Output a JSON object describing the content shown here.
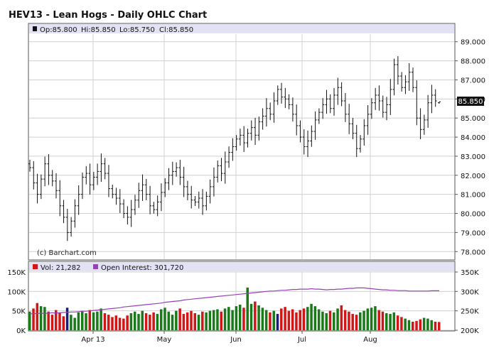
{
  "title": "HEV13 - Lean Hogs - Daily OHLC Chart",
  "info": {
    "op": "Op:85.800",
    "hi": "Hi:85.850",
    "lo": "Lo:85.750",
    "cl": "Cl:85.850"
  },
  "watermark": "(c) Barchart.com",
  "last_price_label": "85.850",
  "volume_legend": {
    "vol": "Vol: 21,282",
    "oi": "Open Interest: 301,720"
  },
  "colors": {
    "up": "#1a7a1a",
    "down": "#d01616",
    "neutral": "#1a1a80",
    "oi": "#9a3fb8",
    "info_bar": "#e2e2f4",
    "grid": "#d0d0d0"
  },
  "chart_data": [
    {
      "type": "ohlc",
      "title": "HEV13 - Lean Hogs - Daily OHLC Chart",
      "x_ticks": [
        "Apr 13",
        "May",
        "Jun",
        "Jul",
        "Aug"
      ],
      "y_ticks": [
        "78.000",
        "79.000",
        "80.000",
        "81.000",
        "82.000",
        "83.000",
        "84.000",
        "85.000",
        "86.000",
        "87.000",
        "88.000",
        "89.000"
      ],
      "ylim": [
        77.6,
        89.4
      ],
      "last": {
        "open": 85.8,
        "high": 85.85,
        "low": 85.75,
        "close": 85.85
      },
      "close": [
        82.4,
        81.6,
        81.0,
        81.8,
        82.6,
        82.0,
        81.7,
        81.2,
        80.4,
        79.8,
        79.0,
        79.6,
        80.4,
        81.0,
        81.9,
        82.1,
        81.5,
        81.9,
        82.2,
        82.6,
        82.1,
        81.3,
        81.0,
        80.8,
        80.5,
        80.0,
        79.8,
        80.2,
        80.7,
        81.2,
        81.5,
        81.0,
        80.4,
        80.2,
        80.6,
        81.1,
        81.6,
        82.0,
        82.2,
        82.4,
        81.9,
        81.4,
        81.0,
        80.7,
        80.6,
        80.8,
        80.4,
        80.9,
        81.4,
        81.9,
        82.5,
        82.1,
        82.7,
        83.2,
        83.5,
        83.9,
        84.1,
        83.7,
        84.2,
        84.5,
        84.1,
        84.8,
        85.1,
        85.5,
        85.2,
        85.9,
        86.5,
        86.1,
        86.0,
        85.7,
        85.2,
        84.6,
        84.0,
        83.5,
        83.8,
        84.3,
        84.9,
        85.3,
        85.7,
        86.0,
        85.5,
        86.2,
        86.6,
        85.9,
        85.2,
        84.7,
        84.2,
        83.4,
        83.9,
        84.6,
        85.2,
        85.8,
        86.2,
        85.9,
        85.3,
        85.7,
        86.5,
        87.8,
        87.2,
        86.6,
        86.9,
        87.4,
        86.6,
        85.0,
        84.4,
        84.9,
        85.8,
        86.2,
        85.9,
        85.85
      ],
      "series": [
        {
          "name": "Vol: 21,282",
          "type": "bar",
          "last": 21282,
          "values": [
            48000,
            56000,
            70000,
            62000,
            60000,
            48000,
            40000,
            52000,
            46000,
            36000,
            58000,
            40000,
            32000,
            46000,
            50000,
            44000,
            52000,
            46000,
            48000,
            56000,
            44000,
            40000,
            34000,
            38000,
            32000,
            30000,
            38000,
            44000,
            48000,
            42000,
            50000,
            44000,
            40000,
            46000,
            42000,
            54000,
            58000,
            48000,
            40000,
            50000,
            56000,
            42000,
            46000,
            50000,
            44000,
            40000,
            48000,
            46000,
            50000,
            52000,
            54000,
            48000,
            56000,
            60000,
            52000,
            62000,
            66000,
            58000,
            110000,
            68000,
            74000,
            64000,
            58000,
            52000,
            46000,
            50000,
            42000,
            56000,
            60000,
            50000,
            54000,
            46000,
            52000,
            56000,
            60000,
            68000,
            62000,
            54000,
            48000,
            44000,
            50000,
            46000,
            56000,
            64000,
            52000,
            48000,
            42000,
            40000,
            46000,
            50000,
            56000,
            58000,
            62000,
            52000,
            48000,
            44000,
            42000,
            46000,
            38000,
            34000,
            30000,
            26000,
            22000,
            24000,
            28000,
            32000,
            30000,
            26000,
            22000,
            21282
          ]
        },
        {
          "name": "Open Interest: 301,720",
          "type": "line",
          "last": 301720,
          "values": [
            242000,
            243000,
            243000,
            244000,
            243000,
            244000,
            245000,
            244000,
            245000,
            246000,
            246000,
            247000,
            247000,
            248000,
            249000,
            249000,
            250000,
            251000,
            252000,
            253000,
            254000,
            255000,
            256000,
            257000,
            258000,
            260000,
            261000,
            262000,
            263000,
            264000,
            265000,
            266000,
            267000,
            268000,
            269000,
            270000,
            272000,
            273000,
            274000,
            275000,
            276000,
            278000,
            279000,
            280000,
            281000,
            282000,
            283000,
            284000,
            285000,
            286000,
            287000,
            288000,
            289000,
            290000,
            291000,
            292000,
            293000,
            294000,
            295000,
            296000,
            297000,
            298000,
            299000,
            300000,
            301000,
            301000,
            302000,
            303000,
            303000,
            304000,
            305000,
            305000,
            306000,
            306000,
            306000,
            307000,
            306000,
            306000,
            305000,
            304000,
            305000,
            305000,
            306000,
            306000,
            307000,
            308000,
            308000,
            309000,
            309000,
            309000,
            308000,
            307000,
            306000,
            305000,
            304000,
            304000,
            303000,
            303000,
            302000,
            302000,
            302000,
            301000,
            301000,
            301000,
            301000,
            301000,
            301000,
            301720,
            301720,
            301720
          ]
        }
      ],
      "y_ticks_left": [
        "0K",
        "50K",
        "100K",
        "150K"
      ],
      "y_ticks_right": [
        "200K",
        "250K",
        "300K",
        "350K"
      ],
      "vol_ylim": [
        0,
        150000
      ],
      "oi_ylim": [
        200000,
        350000
      ]
    }
  ]
}
